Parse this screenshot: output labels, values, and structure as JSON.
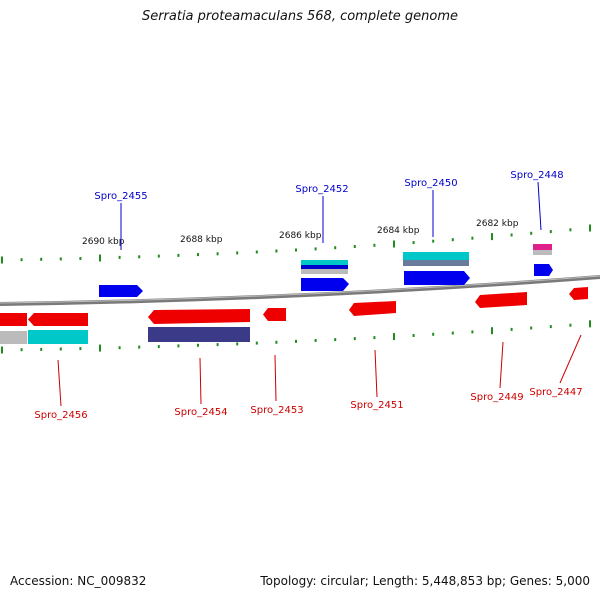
{
  "title": "Serratia proteamaculans 568, complete genome",
  "footer": {
    "accession": "Accession: NC_009832",
    "summary": "Topology: circular; Length: 5,448,853 bp; Genes: 5,000"
  },
  "colors": {
    "backbone": "#777777",
    "tick": "#228b22",
    "forward_label": "#0000cc",
    "reverse_label": "#cc0000",
    "gene_blue": "#0000ee",
    "gene_red": "#ee0000",
    "gene_cyan": "#00c8c8",
    "gene_navy": "#3a3a88",
    "gene_magenta": "#e0208a",
    "gene_gray": "#bbbbbb"
  },
  "scale_labels": [
    "2690 kbp",
    "2688 kbp",
    "2686 kbp",
    "2684 kbp",
    "2682 kbp"
  ],
  "forward_gene_labels": [
    "Spro_2455",
    "Spro_2452",
    "Spro_2450",
    "Spro_2448"
  ],
  "reverse_gene_labels": [
    "Spro_2456",
    "Spro_2454",
    "Spro_2453",
    "Spro_2451",
    "Spro_2449",
    "Spro_2447"
  ]
}
